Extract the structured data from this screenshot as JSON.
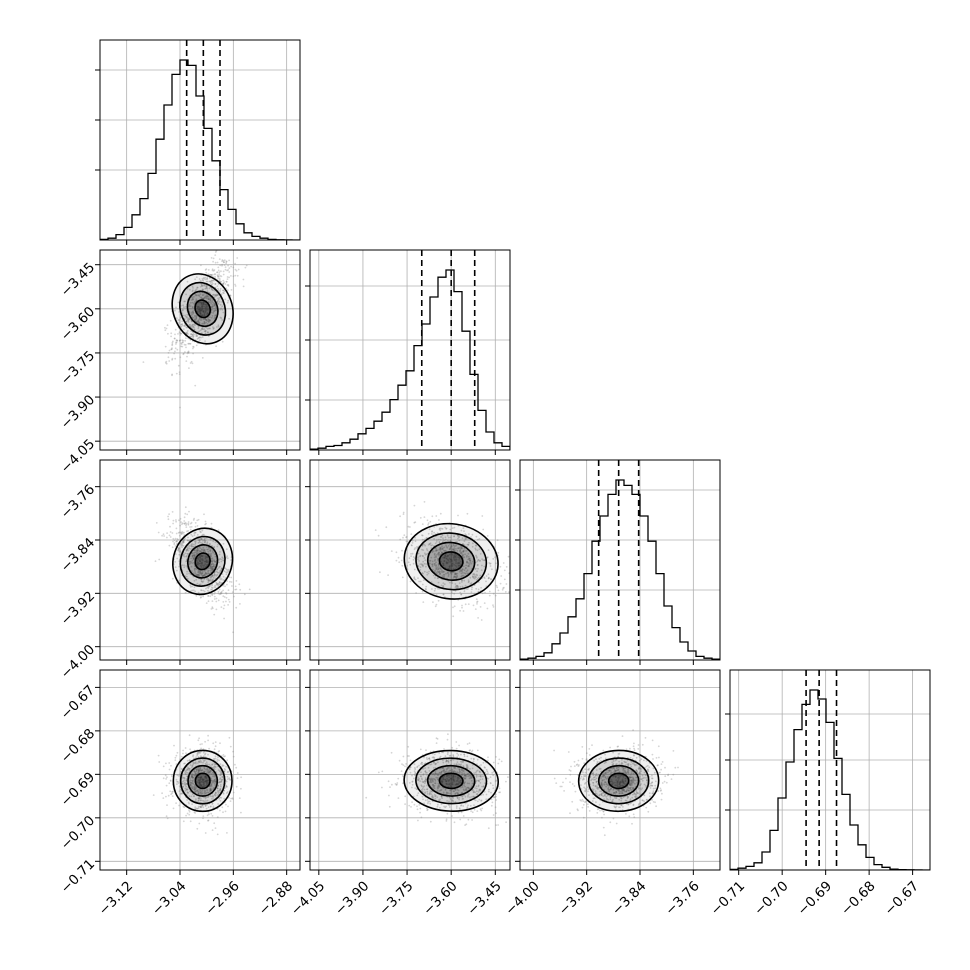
{
  "chart_data": {
    "type": "corner",
    "grid": true,
    "quantile_lines": "dashed",
    "colors": {
      "line": "#000000",
      "grid": "#b0b0b0",
      "points": "#888888",
      "density": "#000000"
    },
    "parameters": [
      {
        "range": [
          -3.16,
          -2.86
        ],
        "ticks": [
          -3.12,
          -3.04,
          -2.96,
          -2.88
        ],
        "tick_labels": [
          "−3.12",
          "−3.04",
          "−2.96",
          "−2.88"
        ],
        "quantiles": [
          -3.03,
          -3.005,
          -2.98
        ],
        "center": -3.006,
        "sigma": 0.022,
        "hist_counts": [
          0.3,
          1,
          3,
          7,
          14,
          23,
          37,
          56,
          75,
          92,
          100,
          97,
          80,
          62,
          44,
          28,
          17,
          9,
          4,
          2,
          1,
          0.3,
          0.1,
          0.05,
          0
        ],
        "hist_max": 100,
        "hist_grid_levels": [
          0.35,
          0.6,
          0.85
        ]
      },
      {
        "range": [
          -4.08,
          -3.4
        ],
        "ticks": [
          -4.05,
          -3.9,
          -3.75,
          -3.6,
          -3.45
        ],
        "tick_labels": [
          "−4.05",
          "−3.90",
          "−3.75",
          "−3.60",
          "−3.45"
        ],
        "quantiles": [
          -3.7,
          -3.6,
          -3.52
        ],
        "center": -3.6,
        "sigma": 0.08,
        "hist_counts": [
          0.5,
          1,
          2,
          2.5,
          4,
          6,
          9,
          12,
          16,
          21,
          28,
          36,
          44,
          58,
          70,
          85,
          96,
          100,
          88,
          66,
          42,
          22,
          10,
          4,
          2
        ],
        "hist_max": 100,
        "hist_grid_levels": [
          0.25,
          0.55,
          0.82
        ]
      },
      {
        "range": [
          -4.02,
          -3.72
        ],
        "ticks": [
          -4.0,
          -3.92,
          -3.84,
          -3.76
        ],
        "tick_labels": [
          "−4.00",
          "−3.92",
          "−3.84",
          "−3.76"
        ],
        "quantiles": [
          -3.902,
          -3.872,
          -3.842
        ],
        "center": -3.872,
        "sigma": 0.03,
        "hist_counts": [
          0.5,
          1,
          2,
          4,
          9,
          15,
          24,
          34,
          48,
          66,
          80,
          92,
          100,
          97,
          92,
          80,
          66,
          48,
          30,
          18,
          10,
          5,
          2,
          1,
          0.5
        ],
        "hist_max": 100,
        "hist_grid_levels": [
          0.35,
          0.6,
          0.85
        ]
      },
      {
        "range": [
          -0.712,
          -0.666
        ],
        "ticks": [
          -0.71,
          -0.7,
          -0.69,
          -0.68,
          -0.67
        ],
        "tick_labels": [
          "−0.71",
          "−0.70",
          "−0.69",
          "−0.68",
          "−0.67"
        ],
        "quantiles": [
          -0.6945,
          -0.6915,
          -0.6875
        ],
        "center": -0.6915,
        "sigma": 0.0035,
        "hist_counts": [
          0.3,
          1,
          2,
          4,
          10,
          22,
          40,
          60,
          78,
          92,
          100,
          95,
          82,
          62,
          42,
          25,
          14,
          7,
          3,
          1.5,
          0.5,
          0.2,
          0.1,
          0.05,
          0
        ],
        "hist_max": 100,
        "hist_grid_levels": [
          0.3,
          0.55,
          0.78
        ]
      }
    ],
    "correlations": [
      [
        1,
        0.65,
        -0.55,
        0.0
      ],
      [
        0.65,
        1,
        -0.35,
        -0.1
      ],
      [
        -0.55,
        -0.35,
        1,
        0.05
      ],
      [
        0.0,
        -0.1,
        0.05,
        1
      ]
    ]
  }
}
